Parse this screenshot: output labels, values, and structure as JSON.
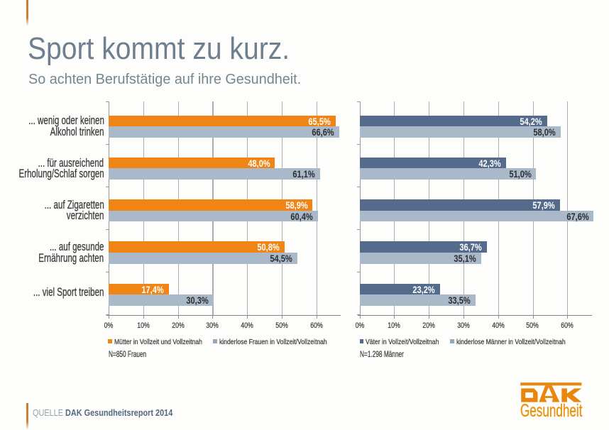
{
  "page": {
    "background": "#fdfdfc",
    "accent_color": "#cf8139"
  },
  "header": {
    "title": "Sport kommt zu kurz.",
    "subtitle": "So achten Berufstätige auf ihre Gesundheit.",
    "title_color": "#6e8090"
  },
  "chart_data": [
    {
      "type": "bar",
      "orientation": "horizontal",
      "categories": [
        [
          "... wenig oder keinen",
          "Alkohol trinken"
        ],
        [
          "... für ausreichend",
          "Erholung/Schlaf sorgen"
        ],
        [
          "... auf Zigaretten",
          "verzichten"
        ],
        [
          "... auf gesunde",
          "Ernährung achten"
        ],
        [
          "... viel Sport treiben"
        ]
      ],
      "series": [
        {
          "name": "Mütter in Vollzeit und Vollzeitnah",
          "color": "#f08414",
          "label_color": "#ffffff",
          "values": [
            65.5,
            48.0,
            58.9,
            50.8,
            17.4
          ]
        },
        {
          "name": "kinderlose Frauen in Vollzeit/Vollzeitnah",
          "color": "#a9b9c9",
          "label_color": "#2d2d2d",
          "values": [
            66.6,
            61.1,
            60.4,
            54.5,
            30.3
          ]
        }
      ],
      "xlim": [
        0,
        67
      ],
      "tick_labels": [
        "0%",
        "10%",
        "20%",
        "30%",
        "40%",
        "50%",
        "60%"
      ],
      "grid": true,
      "legend_position": "bottom",
      "value_label_format": "german-percent",
      "note": "N=850 Frauen"
    },
    {
      "type": "bar",
      "orientation": "horizontal",
      "categories": [
        [
          "... wenig oder keinen",
          "Alkohol trinken"
        ],
        [
          "... für ausreichend",
          "Erholung/Schlaf sorgen"
        ],
        [
          "... auf Zigaretten",
          "verzichten"
        ],
        [
          "... auf gesunde",
          "Ernährung achten"
        ],
        [
          "... viel Sport treiben"
        ]
      ],
      "show_category_labels": false,
      "series": [
        {
          "name": "Väter in Vollzeit/Vollzeitnah",
          "color": "#546b8c",
          "label_color": "#ffffff",
          "values": [
            54.2,
            42.3,
            57.9,
            36.7,
            23.2
          ]
        },
        {
          "name": "kinderlose Männer in Vollzeit/Vollzeitnah",
          "color": "#a9b9c9",
          "label_color": "#2d2d2d",
          "values": [
            58.0,
            51.0,
            67.6,
            35.1,
            33.5
          ]
        }
      ],
      "xlim": [
        0,
        67
      ],
      "tick_labels": [
        "0%",
        "10%",
        "20%",
        "30%",
        "40%",
        "50%",
        "60%"
      ],
      "grid": true,
      "legend_position": "bottom",
      "value_label_format": "german-percent",
      "note": "N=1.298 Männer"
    }
  ],
  "footer": {
    "source_label": "QUELLE",
    "source_text": "DAK Gesundheitsreport 2014"
  },
  "logo": {
    "brand": "DAK",
    "subbrand": "Gesundheit",
    "color": "#e8860d"
  }
}
